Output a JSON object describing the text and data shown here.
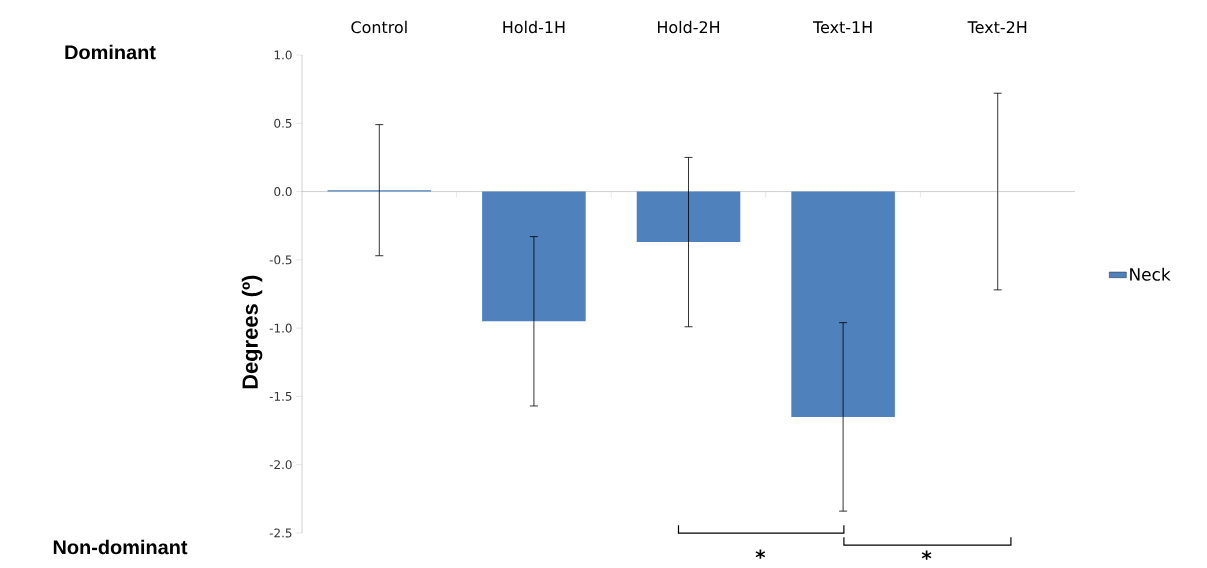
{
  "chart_data": {
    "type": "bar",
    "categories": [
      "Control",
      "Hold-1H",
      "Hold-2H",
      "Text-1H",
      "Text-2H"
    ],
    "series": [
      {
        "name": "Neck",
        "color": "#4f81bd",
        "values": [
          0.01,
          -0.95,
          -0.37,
          -1.65,
          0
        ],
        "errors": [
          0.48,
          0.62,
          0.62,
          0.69,
          0.72
        ]
      }
    ],
    "ylabel": "Degrees (º)",
    "ylim": [
      -2.5,
      1.0
    ],
    "yticks": [
      {
        "value": -2.5,
        "label": "-2.5"
      },
      {
        "value": -2.0,
        "label": "-2.0"
      },
      {
        "value": -1.5,
        "label": "-1.5"
      },
      {
        "value": -1.0,
        "label": "-1.0"
      },
      {
        "value": -0.5,
        "label": "-0.5"
      },
      {
        "value": 0,
        "label": "0.0"
      },
      {
        "value": 0.5,
        "label": "0.5"
      },
      {
        "value": 1.0,
        "label": "1.0"
      }
    ],
    "legend": "right",
    "annotations": [
      "Dominant",
      "Non-dominant",
      "*",
      "*"
    ]
  }
}
